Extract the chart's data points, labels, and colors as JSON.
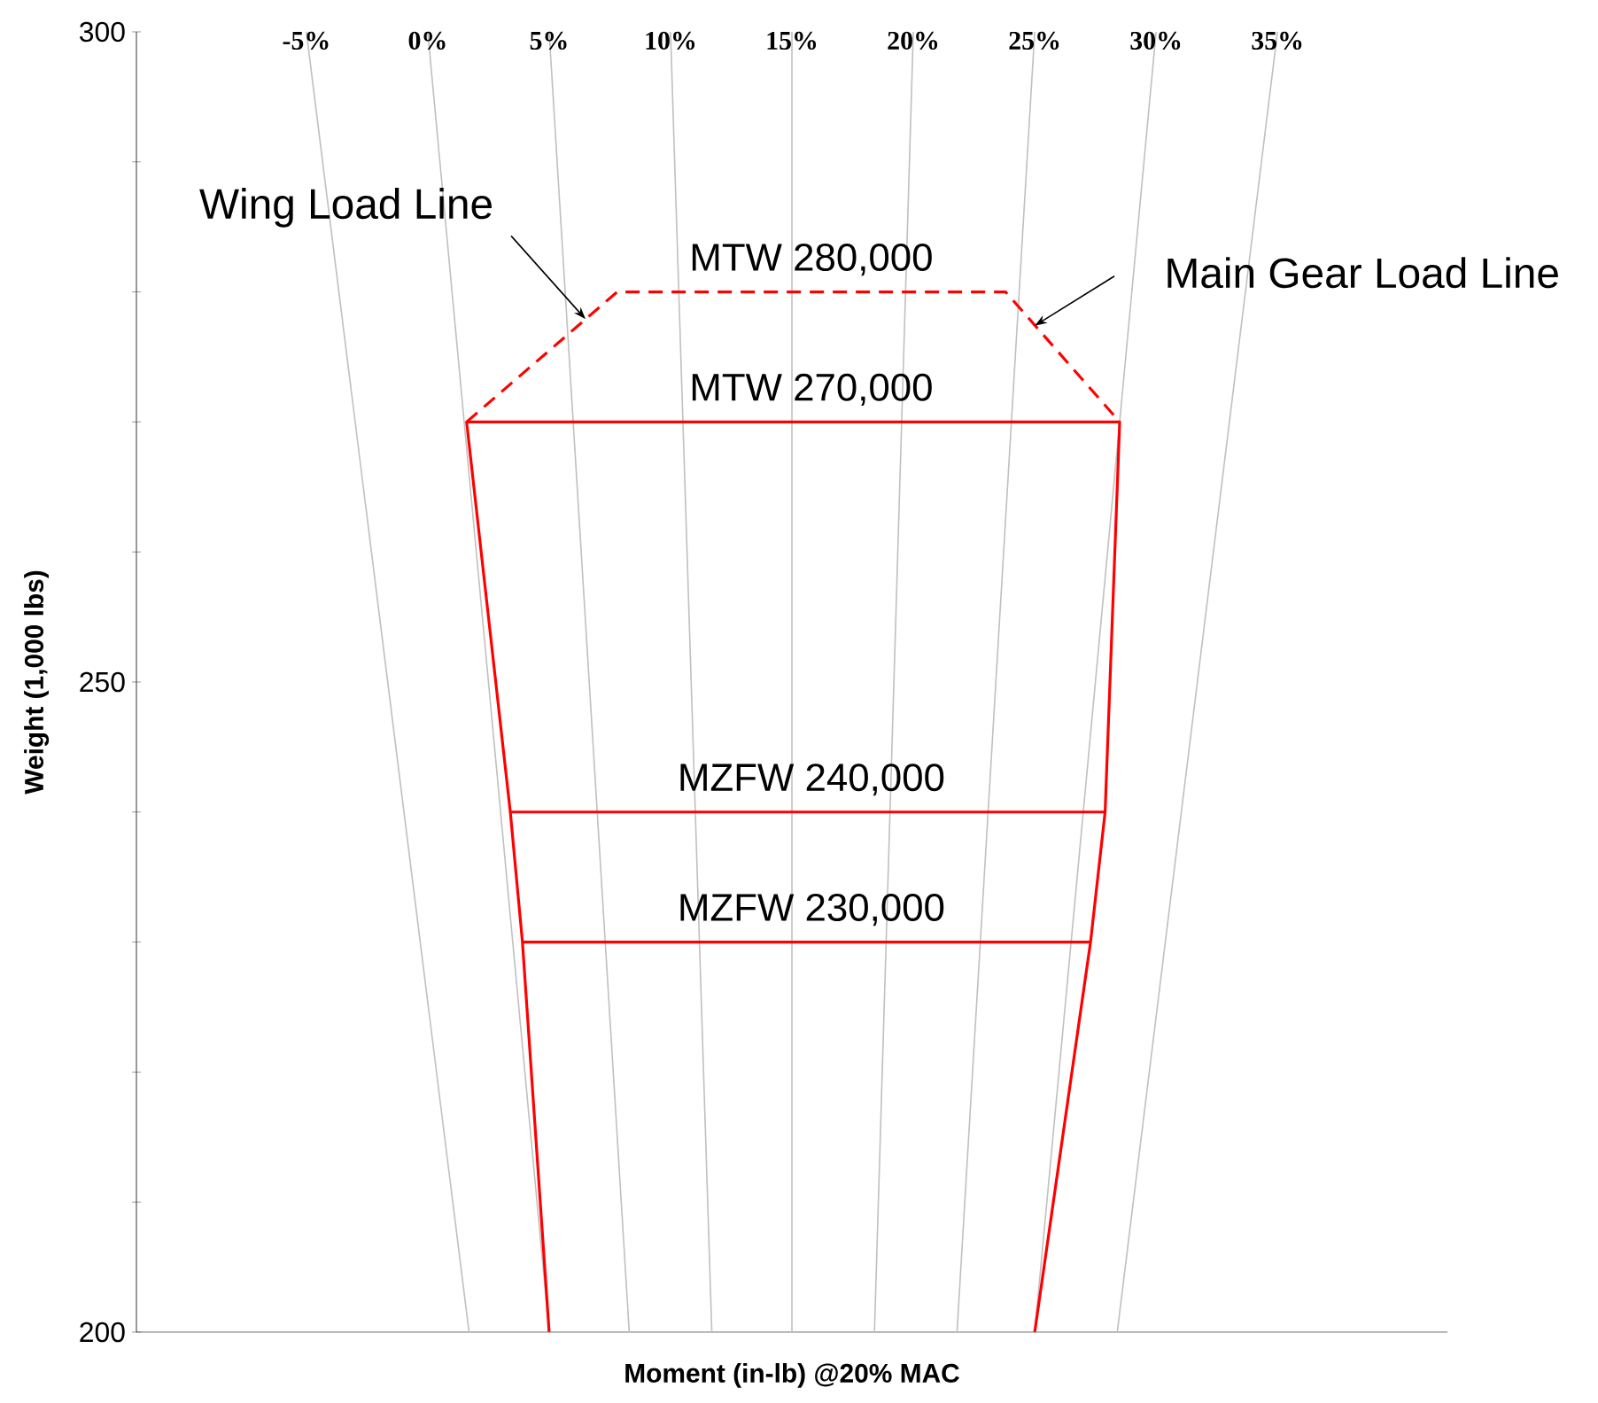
{
  "chart_data": {
    "type": "line",
    "xlabel": "Moment (in-lb) @20% MAC",
    "ylabel": "Weight (1,000 lbs)",
    "xlim": [
      -12,
      42
    ],
    "ylim": [
      200,
      300
    ],
    "yticks": [
      200,
      {
        "value": 210,
        "label": null
      },
      {
        "value": 220,
        "label": null
      },
      {
        "value": 230,
        "label": null
      },
      {
        "value": 240,
        "label": null
      },
      250,
      {
        "value": 260,
        "label": null
      },
      {
        "value": 270,
        "label": null
      },
      {
        "value": 280,
        "label": null
      },
      {
        "value": 290,
        "label": null
      },
      300
    ],
    "xticks": [
      {
        "value": -5,
        "label": "-5%"
      },
      {
        "value": 0,
        "label": "0%"
      },
      {
        "value": 5,
        "label": "5%"
      },
      {
        "value": 10,
        "label": "10%"
      },
      {
        "value": 15,
        "label": "15%"
      },
      {
        "value": 20,
        "label": "20%"
      },
      {
        "value": 25,
        "label": "25%"
      },
      {
        "value": 30,
        "label": "30%"
      },
      {
        "value": 35,
        "label": "35%"
      }
    ],
    "series": [
      {
        "color": "#c0c0c0",
        "x": [
          1.7,
          -5
        ],
        "values": [
          200,
          300
        ]
      },
      {
        "color": "#c0c0c0",
        "x": [
          5.0,
          0
        ],
        "values": [
          200,
          300
        ]
      },
      {
        "color": "#c0c0c0",
        "x": [
          8.3,
          5
        ],
        "values": [
          200,
          300
        ]
      },
      {
        "color": "#c0c0c0",
        "x": [
          11.7,
          10
        ],
        "values": [
          200,
          300
        ]
      },
      {
        "color": "#c0c0c0",
        "x": [
          15.0,
          15
        ],
        "values": [
          200,
          300
        ]
      },
      {
        "color": "#c0c0c0",
        "x": [
          18.4,
          20
        ],
        "values": [
          200,
          300
        ]
      },
      {
        "color": "#c0c0c0",
        "x": [
          21.8,
          25
        ],
        "values": [
          200,
          300
        ]
      },
      {
        "color": "#c0c0c0",
        "x": [
          25.0,
          30
        ],
        "values": [
          200,
          300
        ]
      },
      {
        "color": "#c0c0c0",
        "x": [
          28.4,
          35
        ],
        "values": [
          200,
          300
        ]
      },
      {
        "color": "#ff0000",
        "line_style": "solid",
        "x": [
          5.0,
          3.9,
          3.4,
          1.6,
          28.5,
          27.9,
          27.3,
          25.0
        ],
        "values": [
          200,
          230,
          240,
          270,
          270,
          240,
          230,
          200
        ]
      },
      {
        "color": "#ff0000",
        "line_style": "solid",
        "x": [
          3.4,
          27.9
        ],
        "values": [
          240,
          240
        ]
      },
      {
        "color": "#ff0000",
        "line_style": "solid",
        "x": [
          3.9,
          27.3
        ],
        "values": [
          230,
          230
        ]
      },
      {
        "color": "#ff0000",
        "line_style": "dashed",
        "x": [
          1.6,
          7.8,
          23.8,
          28.5
        ],
        "values": [
          270,
          280,
          280,
          270
        ]
      }
    ],
    "annotations": [
      {
        "text": "Wing Load Line",
        "x": 6.5,
        "y": 277.9
      },
      {
        "text": "Main Gear Load Line",
        "x": 25.0,
        "y": 277.4
      },
      {
        "text": "MTW 280,000",
        "x": 15.8,
        "y": 280
      },
      {
        "text": "MTW 270,000",
        "x": 15.8,
        "y": 270
      },
      {
        "text": "MZFW 240,000",
        "x": 15.8,
        "y": 240
      },
      {
        "text": "MZFW 230,000",
        "x": 15.8,
        "y": 230
      }
    ]
  }
}
